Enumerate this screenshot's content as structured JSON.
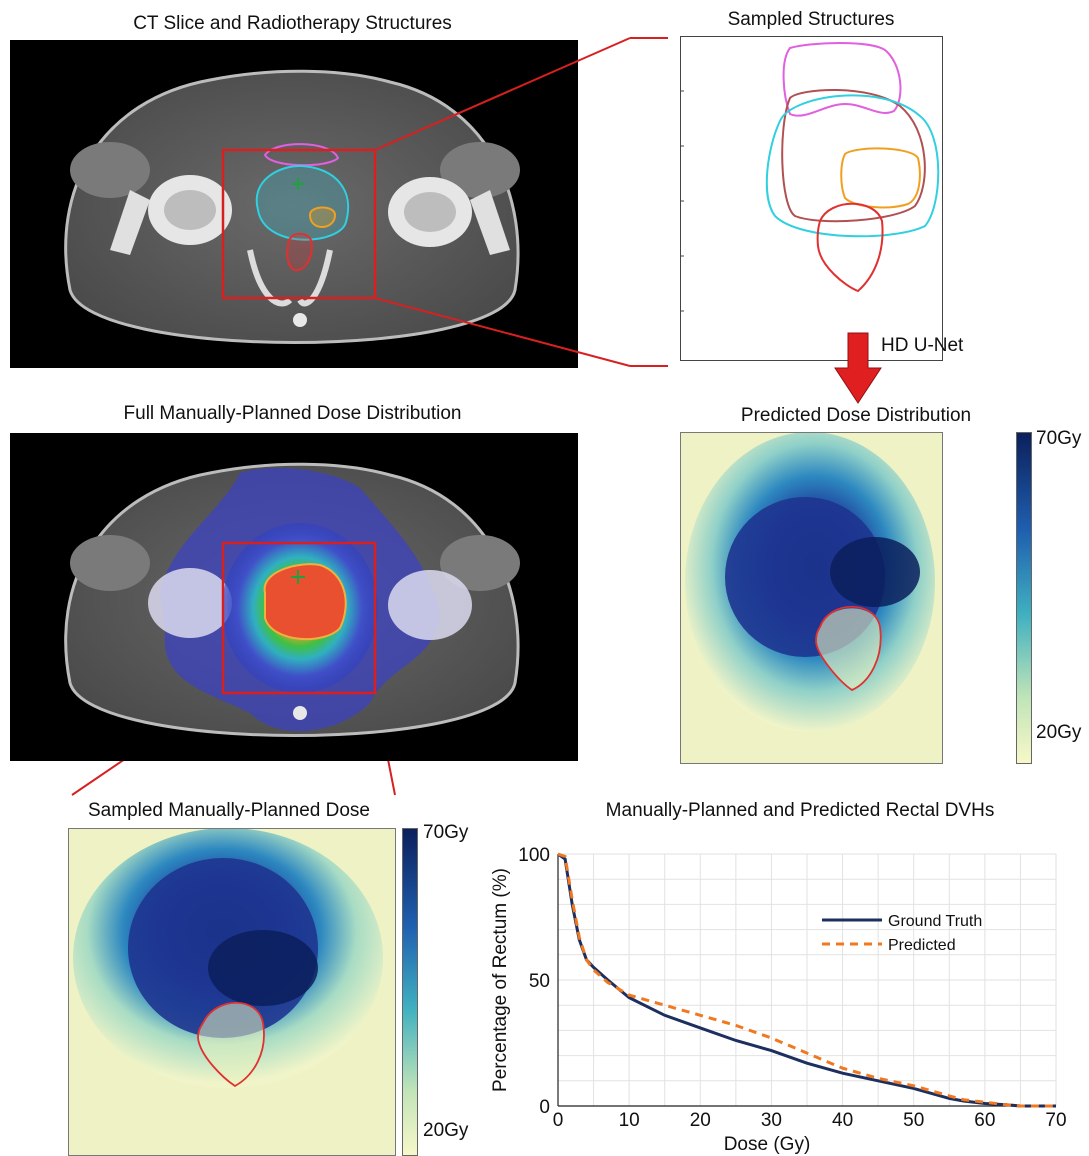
{
  "panels": {
    "ct": {
      "title": "CT Slice and Radiotherapy Structures"
    },
    "structures": {
      "title": "Sampled Structures"
    },
    "arrow": {
      "label": "HD U-Net"
    },
    "full_dose": {
      "title": "Full Manually-Planned Dose Distribution"
    },
    "predicted": {
      "title": "Predicted Dose Distribution",
      "colorbar_max": "70Gy",
      "colorbar_min": "20Gy"
    },
    "sampled_dose": {
      "title": "Sampled Manually-Planned Dose",
      "colorbar_max": "70Gy",
      "colorbar_min": "20Gy"
    },
    "dvh": {
      "title": "Manually-Planned and Predicted Rectal DVHs"
    }
  },
  "colors": {
    "rectum": "#e03030",
    "bladder": "#e060e0",
    "prostate": "#b05050",
    "ptv": "#30d0e0",
    "boost": "#f0a020",
    "ground_truth": "#1c2f5e",
    "predicted": "#f07820",
    "callout": "#d82020",
    "dose_high": "#0b1f5c",
    "dose_low": "#f8f8c8"
  },
  "chart_data": {
    "type": "line",
    "title": "Manually-Planned and Predicted Rectal DVHs",
    "xlabel": "Dose (Gy)",
    "ylabel": "Percentage of Rectum (%)",
    "xlim": [
      0,
      70
    ],
    "ylim": [
      0,
      100
    ],
    "xticks": [
      "0",
      "10",
      "20",
      "30",
      "40",
      "50",
      "60",
      "70"
    ],
    "yticks": [
      "0",
      "50",
      "100"
    ],
    "grid": true,
    "legend": "right",
    "series": [
      {
        "name": "Ground Truth",
        "style": "solid",
        "x": [
          0,
          1,
          2,
          3,
          4,
          5,
          7,
          10,
          15,
          20,
          25,
          30,
          35,
          40,
          45,
          50,
          55,
          57,
          60,
          63,
          65,
          70
        ],
        "y": [
          100,
          98,
          80,
          66,
          58,
          55,
          50,
          43,
          36,
          31,
          26,
          22,
          17,
          13,
          10,
          7,
          3,
          2,
          1,
          0.5,
          0,
          0
        ]
      },
      {
        "name": "Predicted",
        "style": "dashed",
        "x": [
          0,
          1,
          2,
          3,
          4,
          5,
          7,
          10,
          15,
          20,
          25,
          30,
          35,
          40,
          45,
          50,
          55,
          57,
          60,
          63,
          65,
          70
        ],
        "y": [
          100,
          99,
          82,
          67,
          58,
          54,
          49,
          44,
          40,
          36,
          32,
          27,
          21,
          15,
          11,
          8,
          4,
          2.5,
          1.5,
          0.5,
          0,
          0
        ]
      }
    ]
  }
}
